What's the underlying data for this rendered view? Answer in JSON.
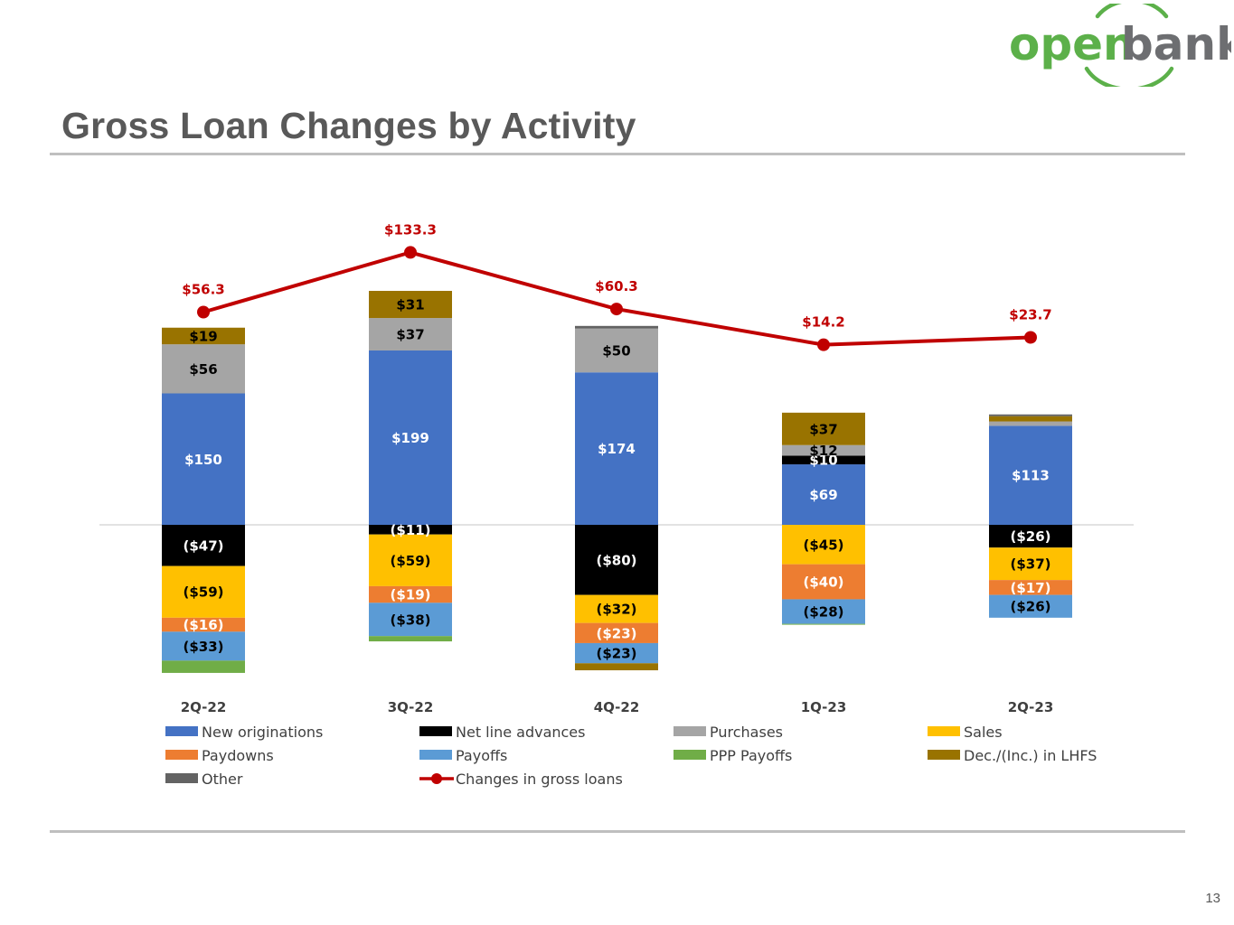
{
  "brand": {
    "name_part1": "open",
    "name_part2": "bank",
    "green": "#5cb04a",
    "gray": "#6d6e71"
  },
  "page": {
    "title": "Gross Loan Changes by Activity",
    "number": "13"
  },
  "chart_data": {
    "type": "bar",
    "stacked": true,
    "title": "",
    "xlabel": "",
    "ylabel": "",
    "units": "$M",
    "categories": [
      "2Q-22",
      "3Q-22",
      "4Q-22",
      "1Q-23",
      "2Q-23"
    ],
    "series": [
      {
        "name": "New originations",
        "color": "#4472c4",
        "label_color": "#ffffff",
        "values": [
          150,
          199,
          174,
          69,
          113
        ],
        "labels": [
          "$150",
          "$199",
          "$174",
          "$69",
          "$113"
        ]
      },
      {
        "name": "Net line advances",
        "color": "#000000",
        "label_color": "#ffffff",
        "values": [
          -47,
          -11,
          -80,
          10,
          -26
        ],
        "labels": [
          "($47)",
          "($11)",
          "($80)",
          "$10",
          "($26)"
        ]
      },
      {
        "name": "Purchases",
        "color": "#a5a5a5",
        "label_color": "#000000",
        "values": [
          56,
          37,
          50,
          12,
          5
        ],
        "labels": [
          "$56",
          "$37",
          "$50",
          "$12",
          ""
        ]
      },
      {
        "name": "Sales",
        "color": "#ffc000",
        "label_color": "#000000",
        "values": [
          -59,
          -59,
          -32,
          -45,
          -37
        ],
        "labels": [
          "($59)",
          "($59)",
          "($32)",
          "($45)",
          "($37)"
        ]
      },
      {
        "name": "Paydowns",
        "color": "#ed7d31",
        "label_color": "#ffffff",
        "values": [
          -16,
          -19,
          -23,
          -40,
          -17
        ],
        "labels": [
          "($16)",
          "($19)",
          "($23)",
          "($40)",
          "($17)"
        ]
      },
      {
        "name": "Payoffs",
        "color": "#5b9bd5",
        "label_color": "#000000",
        "values": [
          -33,
          -38,
          -23,
          -28,
          -26
        ],
        "labels": [
          "($33)",
          "($38)",
          "($23)",
          "($28)",
          "($26)"
        ]
      },
      {
        "name": "PPP Payoffs",
        "color": "#70ad47",
        "label_color": "#000000",
        "values": [
          -14,
          -6,
          0,
          -1,
          0
        ],
        "labels": [
          "",
          "",
          "",
          "",
          ""
        ]
      },
      {
        "name": "Dec./(Inc.) in LHFS",
        "color": "#997300",
        "label_color": "#000000",
        "values": [
          19,
          31,
          -8,
          37,
          6
        ],
        "labels": [
          "$19",
          "$31",
          "",
          "$37",
          ""
        ]
      },
      {
        "name": "Other",
        "color": "#636363",
        "label_color": "#000000",
        "values": [
          0,
          0,
          3,
          0,
          2
        ],
        "labels": [
          "",
          "",
          "",
          "",
          ""
        ]
      }
    ],
    "line": {
      "name": "Changes in gross loans",
      "color": "#c00000",
      "values": [
        56.3,
        133.3,
        60.3,
        14.2,
        23.7
      ],
      "labels": [
        "$56.3",
        "$133.3",
        "$60.3",
        "$14.2",
        "$23.7"
      ]
    },
    "ylim": [
      -160,
      300
    ],
    "legend_position": "bottom"
  }
}
